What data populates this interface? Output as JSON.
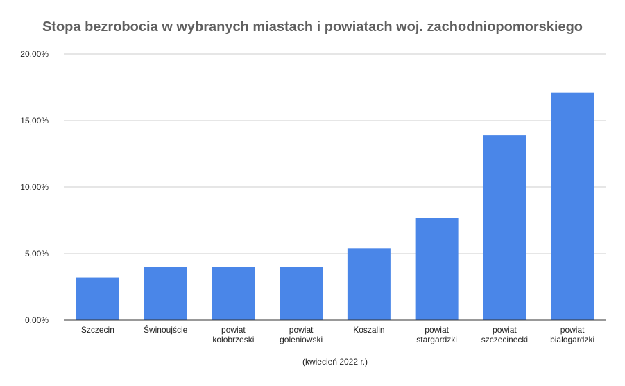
{
  "chart_data": {
    "type": "bar",
    "title": "Stopa bezrobocia w wybranych miastach i powiatach woj. zachodniopomorskiego",
    "xlabel": "(kwiecień 2022 r.)",
    "ylabel": "",
    "categories": [
      [
        "Szczecin"
      ],
      [
        "Świnoujście"
      ],
      [
        "powiat",
        "kołobrzeski"
      ],
      [
        "powiat",
        "goleniowski"
      ],
      [
        "Koszalin"
      ],
      [
        "powiat",
        "stargardzki"
      ],
      [
        "powiat",
        "szczecinecki"
      ],
      [
        "powiat",
        "białogardzki"
      ]
    ],
    "values": [
      3.2,
      4.0,
      4.0,
      4.0,
      5.4,
      7.7,
      13.9,
      17.1
    ],
    "ylim": [
      0,
      20
    ],
    "yticks": [
      0,
      5,
      10,
      15,
      20
    ],
    "ytick_labels": [
      "0,00%",
      "5,00%",
      "10,00%",
      "15,00%",
      "20,00%"
    ],
    "grid": true,
    "legend": "none",
    "bar_color": "#4a86e8",
    "grid_color": "#cccccc",
    "axis_color": "#333333"
  }
}
